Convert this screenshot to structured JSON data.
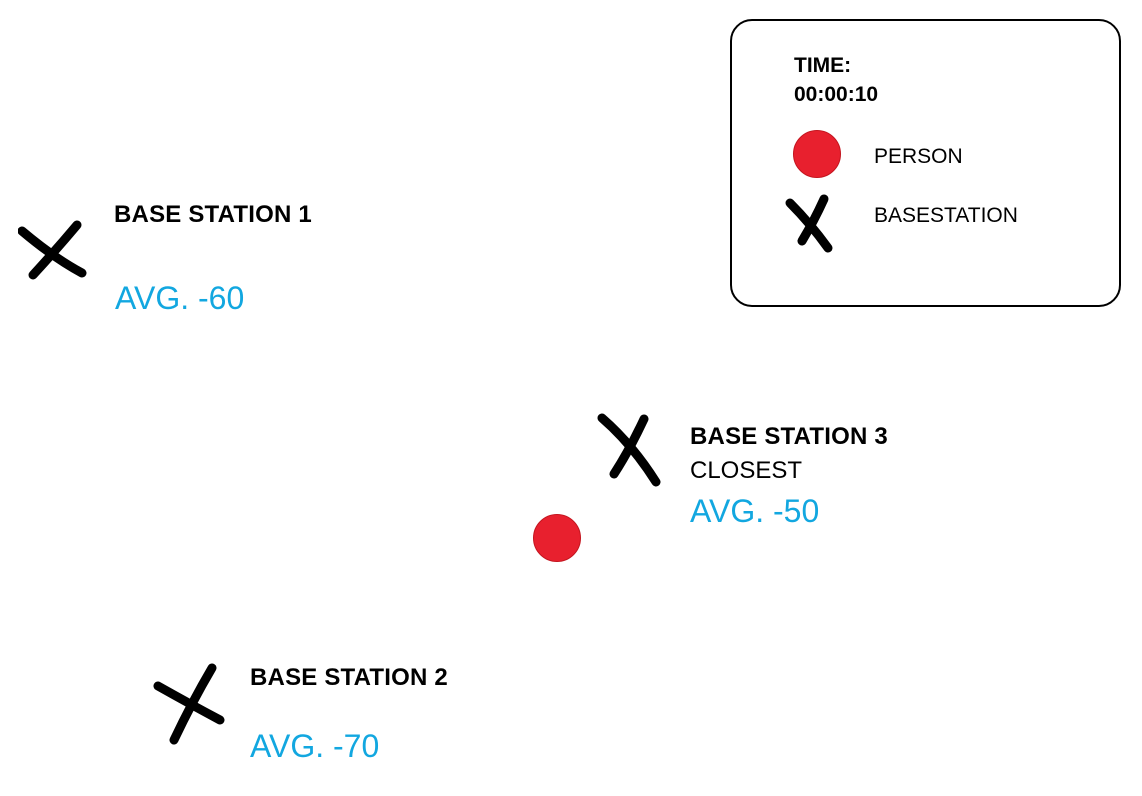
{
  "colors": {
    "avg_text": "#12a7e0",
    "person": "#e8202e",
    "mark": "#000000"
  },
  "legend": {
    "time_label": "TIME:",
    "time_value": "00:00:10",
    "person_label": "PERSON",
    "basestation_label": "BASESTATION",
    "person_icon": "red-dot-icon",
    "basestation_icon": "x-mark-icon"
  },
  "stations": [
    {
      "title": "BASE STATION 1",
      "subtitle": "",
      "avg": "AVG. -60"
    },
    {
      "title": "BASE STATION 2",
      "subtitle": "",
      "avg": "AVG. -70"
    },
    {
      "title": "BASE STATION 3",
      "subtitle": "CLOSEST",
      "avg": "AVG. -50"
    }
  ],
  "person": {
    "icon": "red-dot-icon"
  }
}
